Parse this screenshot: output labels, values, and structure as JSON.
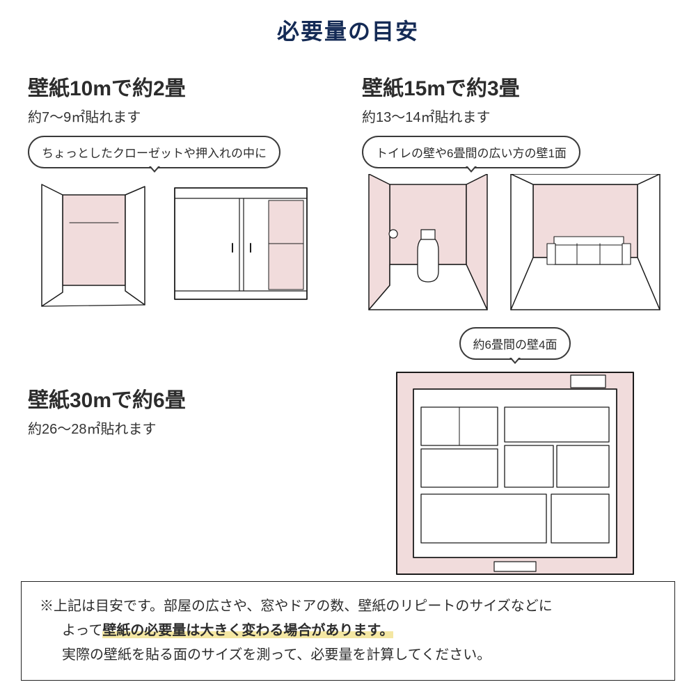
{
  "colors": {
    "title": "#142a55",
    "text": "#2c2c2c",
    "bubble_border": "#3a3a3a",
    "ink": "#1b1b1b",
    "wall_fill": "#f1dcdc",
    "floor_fill": "#ffffff",
    "highlight": "#f4e7a3"
  },
  "fonts": {
    "title_size": 32,
    "heading_size": 30,
    "sub_size": 20,
    "bubble_size": 17,
    "note_size": 20
  },
  "title": "必要量の目安",
  "panels": {
    "p10": {
      "heading": "壁紙10mで約2畳",
      "sub": "約7〜9㎡貼れます",
      "bubble": "ちょっとしたクローゼットや押入れの中に"
    },
    "p15": {
      "heading": "壁紙15mで約3畳",
      "sub": "約13〜14㎡貼れます",
      "bubble": "トイレの壁や6畳間の広い方の壁1面"
    },
    "p30": {
      "heading": "壁紙30mで約6畳",
      "sub": "約26〜28㎡貼れます",
      "bubble": "約6畳間の壁4面"
    }
  },
  "note": {
    "line1_prefix": "※上記は目安です。部屋の広さや、窓やドアの数、壁紙のリピートのサイズなどに",
    "line2_prefix": "よって",
    "line2_highlight": "壁紙の必要量は大きく変わる場合があります。",
    "line3": "実際の壁紙を貼る面のサイズを測って、必要量を計算してください。"
  }
}
